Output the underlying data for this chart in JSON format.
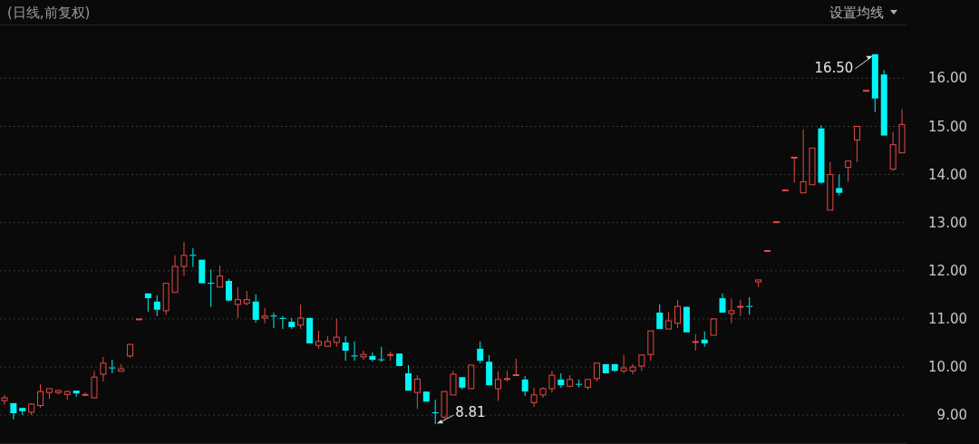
{
  "chart_data": {
    "type": "candlestick",
    "subtitle": "(日线,前复权)",
    "annotations": [
      "设置均线",
      "16.50",
      "8.81"
    ],
    "categories": [
      null,
      null,
      null,
      null,
      null,
      null,
      null,
      null,
      null,
      null,
      null,
      null,
      null,
      null,
      null,
      null,
      null,
      null,
      null,
      null,
      null,
      null,
      null,
      null,
      null,
      null,
      null,
      null,
      null,
      null,
      null,
      null,
      null,
      null,
      null,
      null,
      null,
      null,
      null,
      null,
      null,
      null,
      null,
      null,
      null,
      null,
      null,
      null,
      null,
      null,
      null,
      null,
      null,
      null,
      null,
      null,
      null,
      null,
      null,
      null,
      null,
      null,
      null,
      null,
      null,
      null,
      null,
      null,
      null,
      null,
      null,
      null,
      null,
      null,
      null,
      null,
      null,
      null,
      null,
      null,
      null,
      null,
      null,
      null,
      null,
      null,
      null,
      null,
      null,
      null,
      null,
      null,
      null,
      null,
      null,
      null,
      null,
      null,
      null,
      null,
      null
    ],
    "ohlc": [
      [
        9.3,
        9.42,
        9.21,
        9.36
      ],
      [
        9.25,
        9.25,
        8.91,
        9.04
      ],
      [
        9.15,
        9.15,
        9.0,
        9.08
      ],
      [
        9.06,
        9.25,
        9.0,
        9.23
      ],
      [
        9.2,
        9.64,
        9.15,
        9.49
      ],
      [
        9.47,
        9.55,
        9.34,
        9.55
      ],
      [
        9.47,
        9.53,
        9.43,
        9.51
      ],
      [
        9.43,
        9.51,
        9.32,
        9.49
      ],
      [
        9.51,
        9.51,
        9.38,
        9.45
      ],
      [
        9.42,
        9.47,
        9.4,
        9.43
      ],
      [
        9.36,
        9.92,
        9.36,
        9.79
      ],
      [
        9.85,
        10.21,
        9.7,
        10.08
      ],
      [
        9.99,
        10.15,
        9.87,
        9.98
      ],
      [
        9.91,
        10.06,
        9.91,
        9.96
      ],
      [
        10.23,
        10.47,
        10.19,
        10.47
      ],
      [
        10.99,
        11.0,
        10.99,
        11.0
      ],
      [
        11.53,
        11.53,
        11.15,
        11.43
      ],
      [
        11.36,
        11.49,
        11.06,
        11.19
      ],
      [
        11.17,
        11.74,
        11.09,
        11.74
      ],
      [
        11.55,
        12.32,
        11.55,
        12.09
      ],
      [
        12.09,
        12.6,
        11.89,
        12.32
      ],
      [
        12.33,
        12.47,
        12.08,
        12.31
      ],
      [
        12.23,
        12.23,
        11.74,
        11.74
      ],
      [
        11.75,
        12.02,
        11.25,
        11.73
      ],
      [
        11.66,
        12.11,
        11.66,
        11.89
      ],
      [
        11.79,
        11.83,
        11.36,
        11.38
      ],
      [
        11.3,
        11.66,
        11.02,
        11.4
      ],
      [
        11.32,
        11.58,
        11.28,
        11.4
      ],
      [
        11.36,
        11.51,
        10.92,
        10.98
      ],
      [
        11.02,
        11.23,
        10.91,
        11.06
      ],
      [
        11.07,
        11.13,
        10.81,
        11.05
      ],
      [
        11.02,
        11.06,
        10.79,
        11.0
      ],
      [
        10.94,
        11.02,
        10.79,
        10.83
      ],
      [
        10.87,
        11.3,
        10.79,
        11.02
      ],
      [
        11.02,
        11.02,
        10.49,
        10.49
      ],
      [
        10.45,
        10.75,
        10.38,
        10.53
      ],
      [
        10.43,
        10.64,
        10.43,
        10.53
      ],
      [
        10.51,
        11.0,
        10.42,
        10.62
      ],
      [
        10.51,
        10.64,
        10.13,
        10.34
      ],
      [
        10.24,
        10.53,
        10.13,
        10.22
      ],
      [
        10.21,
        10.34,
        10.15,
        10.26
      ],
      [
        10.23,
        10.3,
        10.11,
        10.15
      ],
      [
        10.16,
        10.42,
        10.11,
        10.15
      ],
      [
        10.25,
        10.32,
        10.13,
        10.26
      ],
      [
        10.28,
        10.28,
        10.02,
        10.02
      ],
      [
        9.87,
        10.04,
        9.51,
        9.51
      ],
      [
        9.47,
        9.83,
        9.13,
        9.75
      ],
      [
        9.49,
        9.49,
        9.28,
        9.28
      ],
      [
        9.06,
        9.32,
        8.81,
        9.04
      ],
      [
        8.96,
        9.49,
        8.92,
        9.49
      ],
      [
        9.42,
        9.92,
        9.42,
        9.85
      ],
      [
        9.79,
        9.79,
        9.53,
        9.57
      ],
      [
        9.55,
        10.04,
        9.55,
        10.04
      ],
      [
        10.38,
        10.53,
        10.08,
        10.13
      ],
      [
        10.11,
        10.25,
        9.62,
        9.62
      ],
      [
        9.55,
        9.91,
        9.3,
        9.74
      ],
      [
        9.74,
        9.92,
        9.7,
        9.76
      ],
      [
        9.83,
        10.17,
        9.83,
        9.84
      ],
      [
        9.74,
        9.81,
        9.4,
        9.49
      ],
      [
        9.26,
        9.57,
        9.17,
        9.42
      ],
      [
        9.42,
        9.58,
        9.36,
        9.55
      ],
      [
        9.55,
        9.92,
        9.47,
        9.83
      ],
      [
        9.74,
        9.87,
        9.57,
        9.62
      ],
      [
        9.6,
        9.83,
        9.58,
        9.74
      ],
      [
        9.65,
        9.74,
        9.58,
        9.64
      ],
      [
        9.58,
        9.74,
        9.53,
        9.74
      ],
      [
        9.76,
        10.08,
        9.7,
        10.08
      ],
      [
        10.06,
        10.06,
        9.87,
        9.87
      ],
      [
        10.06,
        10.06,
        9.9,
        9.92
      ],
      [
        9.92,
        10.25,
        9.87,
        9.98
      ],
      [
        9.92,
        10.06,
        9.85,
        10.0
      ],
      [
        10.02,
        10.25,
        9.92,
        10.25
      ],
      [
        10.26,
        10.75,
        10.13,
        10.75
      ],
      [
        11.13,
        11.3,
        10.79,
        10.79
      ],
      [
        10.79,
        11.15,
        10.79,
        10.96
      ],
      [
        10.91,
        11.4,
        10.81,
        11.26
      ],
      [
        11.25,
        11.26,
        10.72,
        10.72
      ],
      [
        10.51,
        10.68,
        10.34,
        10.53
      ],
      [
        10.57,
        10.74,
        10.42,
        10.49
      ],
      [
        10.66,
        11.0,
        10.66,
        11.0
      ],
      [
        11.43,
        11.53,
        11.13,
        11.13
      ],
      [
        11.11,
        11.42,
        10.91,
        11.17
      ],
      [
        11.25,
        11.4,
        11.06,
        11.26
      ],
      [
        11.27,
        11.45,
        11.09,
        11.25
      ],
      [
        11.77,
        11.81,
        11.66,
        11.81
      ],
      [
        12.41,
        12.42,
        12.41,
        12.42
      ],
      [
        13.01,
        13.02,
        13.01,
        13.02
      ],
      [
        13.67,
        13.68,
        13.67,
        13.68
      ],
      [
        14.35,
        14.36,
        13.83,
        14.36
      ],
      [
        13.62,
        14.94,
        13.62,
        13.85
      ],
      [
        13.79,
        14.55,
        13.79,
        14.55
      ],
      [
        14.96,
        15.02,
        13.81,
        13.83
      ],
      [
        13.26,
        14.26,
        13.26,
        14.0
      ],
      [
        13.72,
        14.0,
        13.57,
        13.62
      ],
      [
        14.15,
        14.28,
        13.85,
        14.28
      ],
      [
        14.72,
        15.0,
        14.26,
        15.0
      ],
      [
        15.74,
        15.75,
        15.74,
        15.75
      ],
      [
        16.5,
        16.5,
        15.3,
        15.58
      ],
      [
        16.08,
        16.17,
        14.81,
        14.81
      ],
      [
        14.11,
        14.89,
        14.08,
        14.62
      ],
      [
        14.45,
        15.36,
        14.45,
        15.04
      ]
    ],
    "colors": [
      "#e84a45",
      "#00f5f5",
      "#00f5f5",
      "#e84a45",
      "#e84a45",
      "#e84a45",
      "#e84a45",
      "#e84a45",
      "#00f5f5",
      "#e84a45",
      "#e84a45",
      "#e84a45",
      "#00f5f5",
      "#e84a45",
      "#e84a45",
      "#e84a45",
      "#00f5f5",
      "#00f5f5",
      "#e84a45",
      "#e84a45",
      "#e84a45",
      "#00f5f5",
      "#00f5f5",
      "#00f5f5",
      "#e84a45",
      "#00f5f5",
      "#e84a45",
      "#e84a45",
      "#00f5f5",
      "#e84a45",
      "#00f5f5",
      "#00f5f5",
      "#00f5f5",
      "#e84a45",
      "#00f5f5",
      "#e84a45",
      "#e84a45",
      "#e84a45",
      "#00f5f5",
      "#00f5f5",
      "#e84a45",
      "#00f5f5",
      "#00f5f5",
      "#e84a45",
      "#00f5f5",
      "#00f5f5",
      "#e84a45",
      "#00f5f5",
      "#00f5f5",
      "#e84a45",
      "#e84a45",
      "#00f5f5",
      "#e84a45",
      "#00f5f5",
      "#00f5f5",
      "#e84a45",
      "#e84a45",
      "#e84a45",
      "#00f5f5",
      "#e84a45",
      "#e84a45",
      "#e84a45",
      "#00f5f5",
      "#e84a45",
      "#00f5f5",
      "#e84a45",
      "#e84a45",
      "#00f5f5",
      "#00f5f5",
      "#e84a45",
      "#e84a45",
      "#e84a45",
      "#e84a45",
      "#00f5f5",
      "#e84a45",
      "#e84a45",
      "#00f5f5",
      "#e84a45",
      "#00f5f5",
      "#e84a45",
      "#00f5f5",
      "#e84a45",
      "#e84a45",
      "#00f5f5",
      "#e84a45",
      "#e84a45",
      "#e84a45",
      "#e84a45",
      "#e84a45",
      "#e84a45",
      "#e84a45",
      "#00f5f5",
      "#e84a45",
      "#00f5f5",
      "#e84a45",
      "#e84a45",
      "#e84a45",
      "#00f5f5",
      "#00f5f5",
      "#e84a45",
      "#e84a45"
    ],
    "ylim": [
      8.4,
      17.1
    ],
    "yticks": [
      {
        "value": 9,
        "label": "9.00"
      },
      {
        "value": 10,
        "label": "10.00"
      },
      {
        "value": 11,
        "label": "11.00"
      },
      {
        "value": 12,
        "label": "12.00"
      },
      {
        "value": 13,
        "label": "13.00"
      },
      {
        "value": 14,
        "label": "14.00"
      },
      {
        "value": 15,
        "label": "15.00"
      },
      {
        "value": 16,
        "label": "16.00"
      }
    ],
    "grid": "y"
  }
}
